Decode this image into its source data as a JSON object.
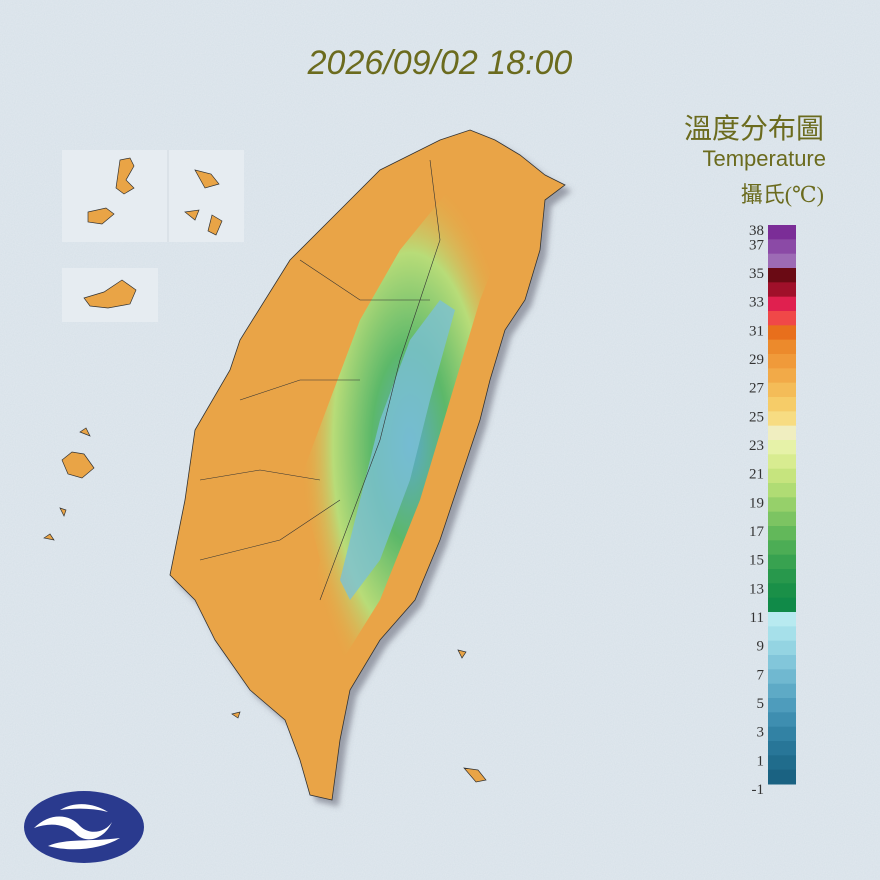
{
  "header": {
    "timestamp": "2026/09/02 18:00"
  },
  "legend": {
    "title": "溫度分布圖",
    "subtitle": "Temperature",
    "unit": "攝氏(℃)",
    "labels": [
      38,
      37,
      35,
      33,
      31,
      29,
      27,
      25,
      23,
      21,
      19,
      17,
      15,
      13,
      11,
      9,
      7,
      5,
      3,
      1,
      -1
    ],
    "colors": [
      "#7b2d97",
      "#8b4aa6",
      "#9d6bb5",
      "#6a0a14",
      "#a0102a",
      "#e0204f",
      "#f04848",
      "#e86f1c",
      "#ec8a2c",
      "#f09a3a",
      "#f2aa48",
      "#f4bc58",
      "#f6cc68",
      "#f7dc82",
      "#f0eec0",
      "#e6f2a8",
      "#d8ec90",
      "#c6e47e",
      "#b0dc74",
      "#96d06a",
      "#7cc462",
      "#62b85a",
      "#4cad55",
      "#38a250",
      "#28984c",
      "#1a9048",
      "#108a48",
      "#b8eaf0",
      "#a6e0ea",
      "#94d4e2",
      "#82c6da",
      "#70b8d0",
      "#5eaac6",
      "#4e9cbc",
      "#3e8eb0",
      "#3282a4",
      "#287698",
      "#206c8c",
      "#1a6282"
    ]
  }
}
